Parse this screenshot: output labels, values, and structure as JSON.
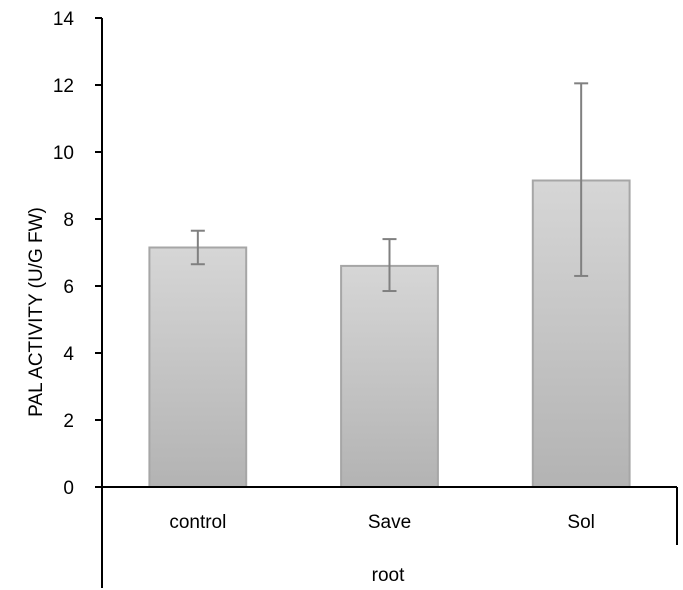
{
  "chart_data": {
    "type": "bar",
    "title": "",
    "ylabel": "PAL ACTIVITY (U/G FW)",
    "xlabel": "",
    "group_label": "root",
    "categories": [
      "control",
      "Save",
      "Sol"
    ],
    "values": [
      7.15,
      6.6,
      9.15
    ],
    "error_low": [
      6.65,
      5.85,
      6.3
    ],
    "error_high": [
      7.65,
      7.4,
      12.05
    ],
    "ylim": [
      0,
      14
    ],
    "yticks": [
      0,
      2,
      4,
      6,
      8,
      10,
      12,
      14
    ],
    "ytick_labels": [
      "0",
      "2",
      "4",
      "6",
      "8",
      "10",
      "12",
      "14"
    ],
    "grid": false,
    "legend": "none",
    "colors": {
      "bar_top": "#d6d6d6",
      "bar_bottom": "#b3b3b3",
      "bar_edge": "#a6a6a6",
      "error_bar": "#808080",
      "axis": "#000000"
    }
  }
}
